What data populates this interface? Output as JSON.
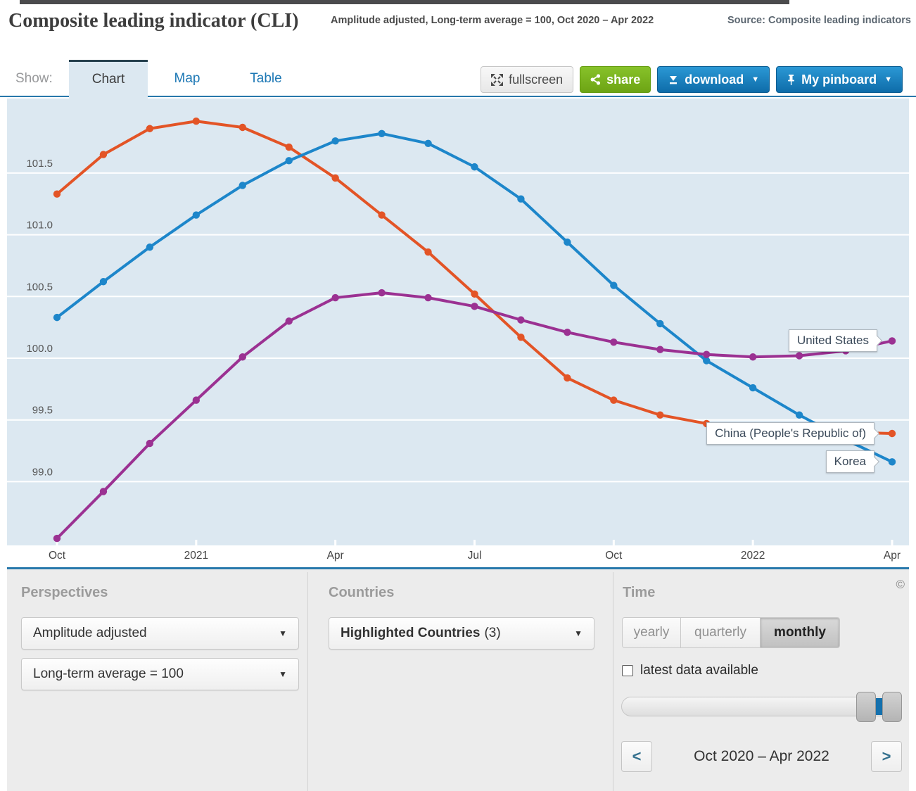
{
  "header": {
    "title": "Composite leading indicator (CLI)",
    "subtitle": "Amplitude adjusted, Long-term average = 100, Oct 2020 – Apr 2022",
    "source": "Source: Composite leading indicators"
  },
  "toolbar": {
    "show_label": "Show:",
    "tabs": [
      {
        "label": "Chart",
        "active": true
      },
      {
        "label": "Map",
        "active": false
      },
      {
        "label": "Table",
        "active": false
      }
    ],
    "fullscreen_label": "fullscreen",
    "share_label": "share",
    "download_label": "download",
    "pinboard_label": "My pinboard"
  },
  "icons": {
    "caret_down": "▼",
    "prev": "<",
    "next": ">",
    "copyright": "©"
  },
  "chart_data": {
    "type": "line",
    "title": "Composite leading indicator (CLI)",
    "subtitle": "Amplitude adjusted, Long-term average = 100, Oct 2020 – Apr 2022",
    "frequency": "monthly",
    "categories": [
      "Oct 2020",
      "Nov 2020",
      "Dec 2020",
      "Jan 2021",
      "Feb 2021",
      "Mar 2021",
      "Apr 2021",
      "May 2021",
      "Jun 2021",
      "Jul 2021",
      "Aug 2021",
      "Sep 2021",
      "Oct 2021",
      "Nov 2021",
      "Dec 2021",
      "Jan 2022",
      "Feb 2022",
      "Mar 2022",
      "Apr 2022"
    ],
    "x_ticks": [
      {
        "index": 0,
        "label": "Oct"
      },
      {
        "index": 3,
        "label": "2021"
      },
      {
        "index": 6,
        "label": "Apr"
      },
      {
        "index": 9,
        "label": "Jul"
      },
      {
        "index": 12,
        "label": "Oct"
      },
      {
        "index": 15,
        "label": "2022"
      },
      {
        "index": 18,
        "label": "Apr"
      }
    ],
    "y_ticks": [
      101.5,
      101.0,
      100.5,
      100.0,
      99.5,
      99.0
    ],
    "ylim": [
      98.45,
      102.1
    ],
    "grid": "horizontal-white",
    "background_color": "#dce8f1",
    "legend_position": "end-of-line-labels",
    "series": [
      {
        "name": "China (People's Republic of)",
        "color": "#e35426",
        "values": [
          101.33,
          101.65,
          101.86,
          101.92,
          101.87,
          101.71,
          101.46,
          101.16,
          100.86,
          100.52,
          100.17,
          99.84,
          99.66,
          99.54,
          99.47,
          99.43,
          99.41,
          99.4,
          99.39
        ]
      },
      {
        "name": "Korea",
        "color": "#1d86ca",
        "values": [
          100.33,
          100.62,
          100.9,
          101.16,
          101.4,
          101.6,
          101.76,
          101.82,
          101.74,
          101.55,
          101.29,
          100.94,
          100.59,
          100.28,
          99.98,
          99.76,
          99.54,
          99.34,
          99.16
        ]
      },
      {
        "name": "United States",
        "color": "#9b3192",
        "values": [
          98.54,
          98.92,
          99.31,
          99.66,
          100.01,
          100.3,
          100.49,
          100.53,
          100.49,
          100.42,
          100.31,
          100.21,
          100.13,
          100.07,
          100.03,
          100.01,
          100.02,
          100.06,
          100.14
        ]
      }
    ]
  },
  "panels": {
    "perspectives": {
      "heading": "Perspectives",
      "dropdown1": "Amplitude adjusted",
      "dropdown2": "Long-term average = 100"
    },
    "countries": {
      "heading": "Countries",
      "dropdown_bold": "Highlighted Countries",
      "dropdown_count": "(3)"
    },
    "time": {
      "heading": "Time",
      "frequencies": [
        {
          "label": "yearly",
          "active": false
        },
        {
          "label": "quarterly",
          "active": false
        },
        {
          "label": "monthly",
          "active": true
        }
      ],
      "checkbox_label": "latest data available",
      "checkbox_checked": false,
      "range_label": "Oct 2020 – Apr 2022"
    }
  },
  "colors": {
    "accent_blue": "#1d78b5",
    "button_blue_top": "#2b98d5",
    "button_blue_bottom": "#0e6ca9",
    "share_green": "#76b122",
    "chart_background": "#dce8f1",
    "separator_blue": "#2878ab",
    "panel_background": "#ececec"
  }
}
